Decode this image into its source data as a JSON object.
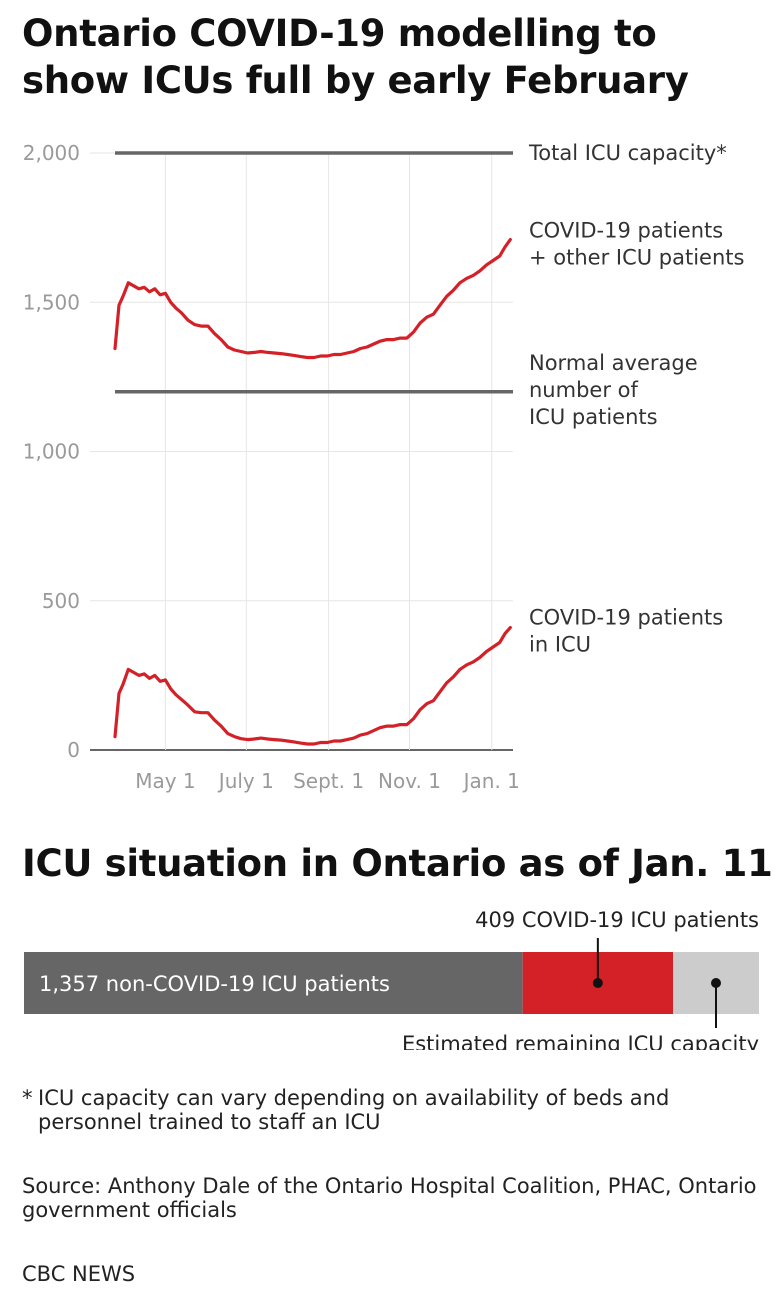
{
  "chart_title": "Ontario COVID-19 modelling to show ICUs full by early February",
  "bar_title": "ICU situation in Ontario as of Jan. 11",
  "footnote_mark": "*",
  "footnote": "ICU capacity can vary depending on availability of beds and personnel trained to staff an ICU",
  "source": "Source: Anthony Dale of the Ontario Hospital Coalition, PHAC, Ontario government officials",
  "brand": "CBC NEWS",
  "colors": {
    "covid": "#d42027",
    "reference": "#666666",
    "non_covid": "#666666",
    "remaining": "#cccccc",
    "grid": "#e6e6e6"
  },
  "chart_data": [
    {
      "type": "line",
      "ylim": [
        0,
        2000
      ],
      "y_ticks": [
        "2,000",
        "1,500",
        "1,000",
        "500",
        "0"
      ],
      "y_tick_values": [
        2000,
        1500,
        1000,
        500,
        0
      ],
      "x_range": [
        0,
        300
      ],
      "x_ticks": [
        "May 1",
        "July 1",
        "Sept. 1",
        "Nov. 1",
        "Jan. 1"
      ],
      "x_tick_values": [
        38,
        99,
        161,
        222,
        284
      ],
      "grid": true,
      "reference_lines": [
        {
          "y": 2000,
          "label": "Total ICU capacity*"
        },
        {
          "y": 1200,
          "label": "Normal average number of ICU patients"
        }
      ],
      "series": [
        {
          "name": "COVID-19 patients + other ICU patients",
          "x": [
            0,
            3,
            6,
            10,
            14,
            18,
            22,
            26,
            30,
            34,
            38,
            42,
            46,
            50,
            55,
            60,
            65,
            70,
            75,
            80,
            85,
            90,
            95,
            100,
            105,
            110,
            115,
            120,
            125,
            130,
            135,
            140,
            145,
            150,
            155,
            160,
            165,
            170,
            175,
            180,
            185,
            190,
            195,
            200,
            205,
            210,
            215,
            220,
            225,
            230,
            235,
            240,
            245,
            250,
            255,
            260,
            265,
            270,
            275,
            280,
            285,
            290,
            294,
            298
          ],
          "y": [
            1345,
            1490,
            1520,
            1565,
            1555,
            1545,
            1550,
            1535,
            1545,
            1525,
            1530,
            1500,
            1480,
            1465,
            1440,
            1425,
            1420,
            1420,
            1395,
            1375,
            1350,
            1340,
            1335,
            1330,
            1332,
            1335,
            1332,
            1330,
            1328,
            1325,
            1322,
            1318,
            1315,
            1315,
            1320,
            1320,
            1325,
            1325,
            1330,
            1335,
            1345,
            1350,
            1360,
            1370,
            1375,
            1375,
            1380,
            1380,
            1400,
            1430,
            1450,
            1460,
            1490,
            1520,
            1540,
            1565,
            1580,
            1590,
            1605,
            1625,
            1640,
            1655,
            1685,
            1710
          ]
        },
        {
          "name": "COVID-19 patients in ICU",
          "x": [
            0,
            3,
            6,
            10,
            14,
            18,
            22,
            26,
            30,
            34,
            38,
            42,
            46,
            50,
            55,
            60,
            65,
            70,
            75,
            80,
            85,
            90,
            95,
            100,
            105,
            110,
            115,
            120,
            125,
            130,
            135,
            140,
            145,
            150,
            155,
            160,
            165,
            170,
            175,
            180,
            185,
            190,
            195,
            200,
            205,
            210,
            215,
            220,
            225,
            230,
            235,
            240,
            245,
            250,
            255,
            260,
            265,
            270,
            275,
            280,
            285,
            290,
            294,
            298
          ],
          "y": [
            45,
            190,
            220,
            270,
            260,
            250,
            255,
            240,
            250,
            230,
            235,
            205,
            185,
            170,
            150,
            128,
            125,
            125,
            100,
            80,
            55,
            45,
            38,
            35,
            37,
            40,
            37,
            35,
            33,
            30,
            27,
            23,
            20,
            20,
            25,
            25,
            30,
            30,
            35,
            40,
            50,
            55,
            65,
            75,
            80,
            80,
            85,
            85,
            105,
            135,
            155,
            165,
            195,
            225,
            245,
            270,
            285,
            295,
            310,
            330,
            345,
            360,
            390,
            410
          ]
        }
      ]
    },
    {
      "type": "bar",
      "stacked": true,
      "total": 2000,
      "segments": [
        {
          "name": "non-COVID-19 ICU patients",
          "value": 1357,
          "label": "1,357 non-COVID-19 ICU patients"
        },
        {
          "name": "COVID-19 ICU patients",
          "value": 409,
          "label": "409 COVID-19 ICU patients"
        },
        {
          "name": "Estimated remaining ICU capacity",
          "value": 234,
          "label": "Estimated remaining ICU capacity"
        }
      ]
    }
  ]
}
